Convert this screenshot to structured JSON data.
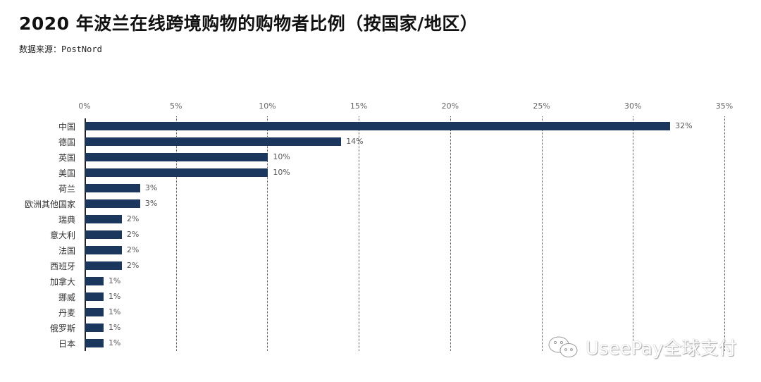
{
  "header": {
    "title": "2020 年波兰在线跨境购物的购物者比例（按国家/地区）",
    "source": "数据来源：PostNord"
  },
  "watermark": {
    "icon": "wechat-icon",
    "text": "UseePay全球支付"
  },
  "colors": {
    "bar": "#1c375e",
    "axis": "#222222",
    "grid": "#555555"
  },
  "axis_ticks": [
    "0%",
    "5%",
    "10%",
    "15%",
    "20%",
    "25%",
    "30%",
    "35%"
  ],
  "chart_data": {
    "type": "bar",
    "orientation": "horizontal",
    "title": "2020 年波兰在线跨境购物的购物者比例（按国家/地区）",
    "subtitle": "数据来源：PostNord",
    "xlabel": "",
    "ylabel": "",
    "xlim": [
      0,
      35
    ],
    "x_ticks": [
      "0%",
      "5%",
      "10%",
      "15%",
      "20%",
      "25%",
      "30%",
      "35%"
    ],
    "grid": "vertical dotted",
    "legend": "none",
    "categories": [
      "中国",
      "德国",
      "英国",
      "美国",
      "荷兰",
      "欧洲其他国家",
      "瑞典",
      "意大利",
      "法国",
      "西班牙",
      "加拿大",
      "挪威",
      "丹麦",
      "俄罗斯",
      "日本"
    ],
    "values": [
      32,
      14,
      10,
      10,
      3,
      3,
      2,
      2,
      2,
      2,
      1,
      1,
      1,
      1,
      1
    ],
    "value_labels": [
      "32%",
      "14%",
      "10%",
      "10%",
      "3%",
      "3%",
      "2%",
      "2%",
      "2%",
      "2%",
      "1%",
      "1%",
      "1%",
      "1%",
      "1%"
    ]
  }
}
